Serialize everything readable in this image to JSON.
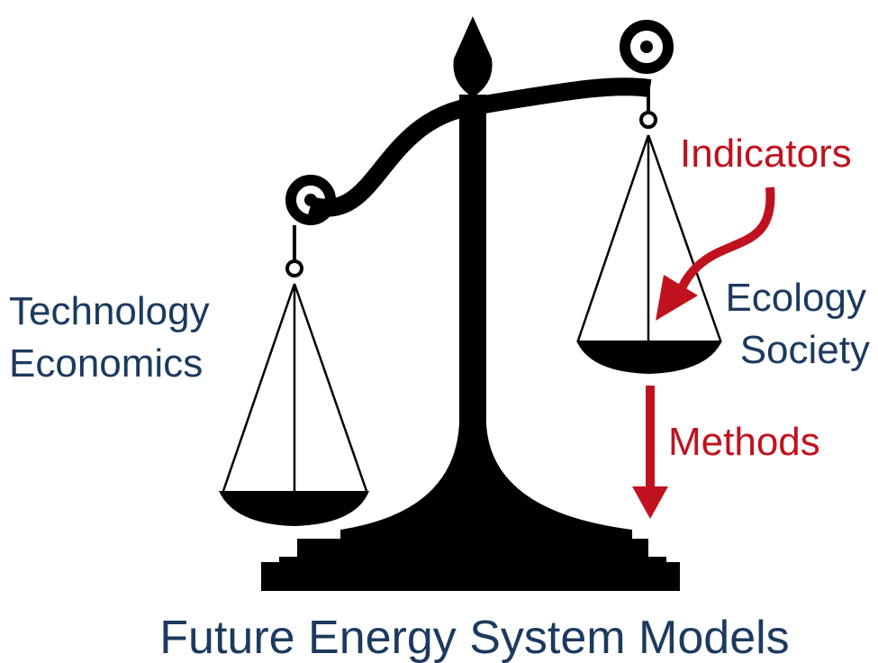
{
  "left_labels": [
    "Technology",
    "Economics"
  ],
  "right_labels": [
    "Ecology",
    "Society"
  ],
  "indicators": "Indicators",
  "methods": "Methods",
  "title": "Future Energy System Models"
}
